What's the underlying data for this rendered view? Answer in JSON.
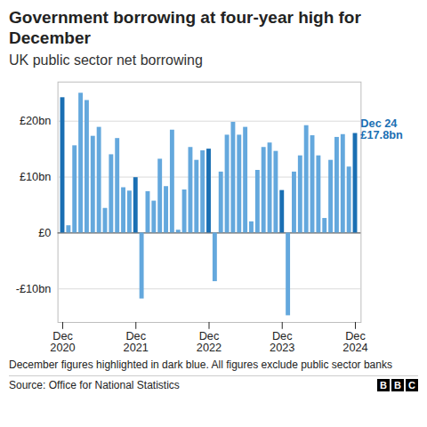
{
  "chart_data": {
    "type": "bar",
    "title": "Government borrowing at four-year high for December",
    "subtitle": "UK public sector net borrowing",
    "categories": [
      "Dec 2020",
      null,
      null,
      null,
      null,
      null,
      null,
      null,
      null,
      null,
      null,
      null,
      "Dec 2021",
      null,
      null,
      null,
      null,
      null,
      null,
      null,
      null,
      null,
      null,
      null,
      "Dec 2022",
      null,
      null,
      null,
      null,
      null,
      null,
      null,
      null,
      null,
      null,
      null,
      "Dec 2023",
      null,
      null,
      null,
      null,
      null,
      null,
      null,
      null,
      null,
      null,
      null,
      "Dec 2024"
    ],
    "values": [
      24.2,
      1.3,
      15.6,
      25.0,
      23.7,
      17.3,
      18.9,
      4.4,
      14.0,
      16.9,
      8.1,
      7.5,
      9.9,
      -11.8,
      7.4,
      5.7,
      13.2,
      8.3,
      18.4,
      0.5,
      7.7,
      15.3,
      13.0,
      14.7,
      15.0,
      -8.7,
      10.9,
      17.5,
      19.8,
      17.5,
      18.9,
      2.0,
      11.2,
      15.3,
      16.1,
      14.6,
      7.6,
      -14.8,
      10.9,
      13.8,
      19.2,
      17.4,
      13.8,
      2.6,
      13.0,
      17.1,
      17.6,
      11.8,
      17.8
    ],
    "colors": [
      "#1a6fb3",
      "#64a8dd",
      "#64a8dd",
      "#64a8dd",
      "#64a8dd",
      "#64a8dd",
      "#64a8dd",
      "#64a8dd",
      "#64a8dd",
      "#64a8dd",
      "#64a8dd",
      "#64a8dd",
      "#1a6fb3",
      "#64a8dd",
      "#64a8dd",
      "#64a8dd",
      "#64a8dd",
      "#64a8dd",
      "#64a8dd",
      "#64a8dd",
      "#64a8dd",
      "#64a8dd",
      "#64a8dd",
      "#64a8dd",
      "#1a6fb3",
      "#64a8dd",
      "#64a8dd",
      "#64a8dd",
      "#64a8dd",
      "#64a8dd",
      "#64a8dd",
      "#64a8dd",
      "#64a8dd",
      "#64a8dd",
      "#64a8dd",
      "#64a8dd",
      "#1a6fb3",
      "#64a8dd",
      "#64a8dd",
      "#64a8dd",
      "#64a8dd",
      "#64a8dd",
      "#64a8dd",
      "#64a8dd",
      "#64a8dd",
      "#64a8dd",
      "#64a8dd",
      "#64a8dd",
      "#1a6fb3"
    ],
    "ylim": [
      -16,
      27
    ],
    "yticks": [
      {
        "value": -10,
        "label": "-£10bn"
      },
      {
        "value": 0,
        "label": "£0"
      },
      {
        "value": 10,
        "label": "£10bn"
      },
      {
        "value": 20,
        "label": "£20bn"
      }
    ],
    "grid": true,
    "annotation": [
      "Dec 24",
      "£17.8bn"
    ],
    "note": "December figures highlighted in dark blue. All figures exclude public sector banks",
    "source": "Source: Office for National Statistics",
    "logo": "BBC"
  }
}
